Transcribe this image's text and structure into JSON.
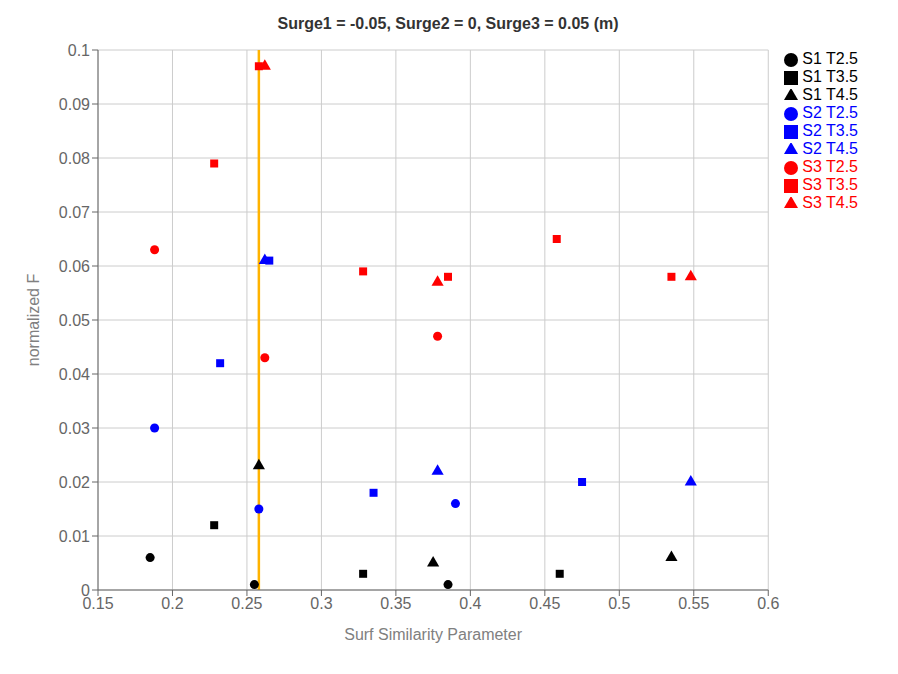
{
  "chart_data": {
    "type": "scatter",
    "title": "Surge1 = -0.05, Surge2 = 0, Surge3 = 0.05 (m)",
    "xlabel": "Surf Similarity Parameter",
    "ylabel": "normalized F",
    "xlim": [
      0.15,
      0.6
    ],
    "ylim": [
      0,
      0.1
    ],
    "xticks": [
      0.15,
      0.2,
      0.25,
      0.3,
      0.35,
      0.4,
      0.45,
      0.5,
      0.55,
      0.6
    ],
    "yticks": [
      0,
      0.01,
      0.02,
      0.03,
      0.04,
      0.05,
      0.06,
      0.07,
      0.08,
      0.09,
      0.1
    ],
    "grid": true,
    "legend": "upper right",
    "vlines": [
      {
        "x": 0.258,
        "color": "#FFB300"
      }
    ],
    "series": [
      {
        "name": "S1 T2.5",
        "color": "#000000",
        "marker": "circle",
        "x": [
          0.185,
          0.255,
          0.385
        ],
        "y": [
          0.006,
          0.001,
          0.001
        ]
      },
      {
        "name": "S1 T3.5",
        "color": "#000000",
        "marker": "square",
        "x": [
          0.228,
          0.328,
          0.46
        ],
        "y": [
          0.012,
          0.003,
          0.003
        ]
      },
      {
        "name": "S1 T4.5",
        "color": "#000000",
        "marker": "triangle",
        "x": [
          0.258,
          0.375,
          0.535
        ],
        "y": [
          0.023,
          0.005,
          0.006
        ]
      },
      {
        "name": "S2 T2.5",
        "color": "#0000FF",
        "marker": "circle",
        "x": [
          0.188,
          0.258,
          0.39
        ],
        "y": [
          0.03,
          0.015,
          0.016
        ]
      },
      {
        "name": "S2 T3.5",
        "color": "#0000FF",
        "marker": "square",
        "x": [
          0.232,
          0.265,
          0.335,
          0.475
        ],
        "y": [
          0.042,
          0.061,
          0.018,
          0.02
        ]
      },
      {
        "name": "S2 T4.5",
        "color": "#0000FF",
        "marker": "triangle",
        "x": [
          0.262,
          0.378,
          0.548
        ],
        "y": [
          0.061,
          0.022,
          0.02
        ]
      },
      {
        "name": "S3 T2.5",
        "color": "#FF0000",
        "marker": "circle",
        "x": [
          0.188,
          0.262,
          0.378
        ],
        "y": [
          0.063,
          0.043,
          0.047
        ]
      },
      {
        "name": "S3 T3.5",
        "color": "#FF0000",
        "marker": "square",
        "x": [
          0.228,
          0.258,
          0.328,
          0.385,
          0.458,
          0.535
        ],
        "y": [
          0.079,
          0.097,
          0.059,
          0.058,
          0.065,
          0.058
        ]
      },
      {
        "name": "S3 T4.5",
        "color": "#FF0000",
        "marker": "triangle",
        "x": [
          0.262,
          0.378,
          0.548
        ],
        "y": [
          0.097,
          0.057,
          0.058
        ]
      }
    ]
  }
}
